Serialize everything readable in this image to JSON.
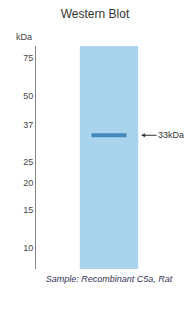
{
  "chart_data": {
    "type": "gel",
    "title": "Western Blot",
    "xlabel": "Sample: Recombinant C5a, Rat",
    "ylabel": "kDa",
    "values": [
      33
    ],
    "value_labels": [
      "33kDa"
    ],
    "data_labels": true,
    "color": "#4488bb",
    "log": "y",
    "ylim": [
      8,
      85
    ],
    "yticks": [
      75,
      50,
      37,
      25,
      20,
      15,
      10
    ],
    "grid": false,
    "tick_labels": "y"
  }
}
